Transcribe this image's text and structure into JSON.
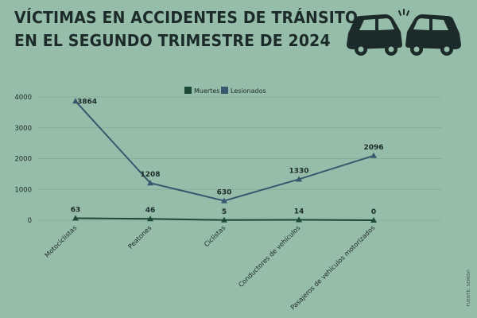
{
  "header": {
    "title_line1": "VÍCTIMAS EN ACCIDENTES DE TRÁNSITO",
    "title_line2": "EN EL SEGUNDO TRIMESTRE DE 2024"
  },
  "source": "FUENTE: SEMOVI",
  "icon": "car-crash-icon",
  "colors": {
    "background": "#96bda9",
    "muertes": "#1d4a36",
    "lesionados": "#3a5770",
    "text": "#1c2b2a"
  },
  "chart_data": {
    "type": "line",
    "title": "VÍCTIMAS EN ACCIDENTES DE TRÁNSITO EN EL SEGUNDO TRIMESTRE DE 2024",
    "categories": [
      "Motociclistas",
      "Peatones",
      "Ciclistas",
      "Conductores de vehículos",
      "Pasajeros de vehículos motorizados"
    ],
    "series": [
      {
        "name": "Muertes",
        "values": [
          63,
          46,
          5,
          14,
          0
        ]
      },
      {
        "name": "Lesionados",
        "values": [
          3864,
          1208,
          630,
          1330,
          2096
        ]
      }
    ],
    "ylim": [
      0,
      4000
    ],
    "yticks": [
      0,
      1000,
      2000,
      3000,
      4000
    ],
    "grid": true,
    "legend": "top-center",
    "data_labels": true
  }
}
